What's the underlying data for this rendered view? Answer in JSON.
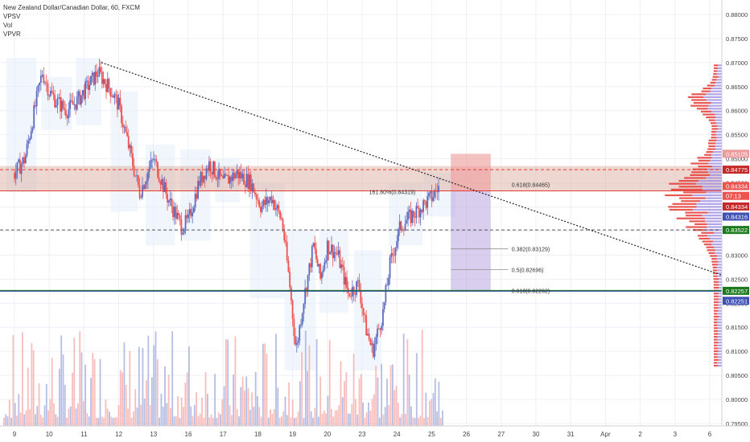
{
  "header": {
    "title": "New Zealand Dollar/Canadian Dollar, 60, FXCM",
    "indicators": [
      "VPSV",
      "Vol",
      "VPVR"
    ]
  },
  "chart_data": {
    "type": "candlestick",
    "title": "New Zealand Dollar/Canadian Dollar, 60, FXCM",
    "y_range": [
      0.7945,
      0.883
    ],
    "y_ticks": [
      "0.88000",
      "0.87500",
      "0.87000",
      "0.86500",
      "0.86000",
      "0.85500",
      "0.85000",
      "0.84500",
      "0.84000",
      "0.83500",
      "0.83000",
      "0.82500",
      "0.82000",
      "0.81500",
      "0.81000",
      "0.80500",
      "0.80000",
      "0.79500"
    ],
    "x_ticks": [
      {
        "label": "9",
        "day": 0
      },
      {
        "label": "10",
        "day": 1
      },
      {
        "label": "11",
        "day": 2
      },
      {
        "label": "12",
        "day": 3
      },
      {
        "label": "13",
        "day": 4
      },
      {
        "label": "16",
        "day": 5
      },
      {
        "label": "17",
        "day": 6
      },
      {
        "label": "18",
        "day": 7
      },
      {
        "label": "19",
        "day": 8
      },
      {
        "label": "20",
        "day": 9
      },
      {
        "label": "23",
        "day": 10
      },
      {
        "label": "24",
        "day": 11
      },
      {
        "label": "25",
        "day": 12
      },
      {
        "label": "26",
        "day": 13
      },
      {
        "label": "27",
        "day": 14
      },
      {
        "label": "30",
        "day": 15
      },
      {
        "label": "31",
        "day": 16
      },
      {
        "label": "Apr",
        "day": 17
      },
      {
        "label": "2",
        "day": 18
      },
      {
        "label": "3",
        "day": 19
      },
      {
        "label": "6",
        "day": 20
      }
    ],
    "price_path": [
      [
        0.0,
        0.847
      ],
      [
        0.3,
        0.85
      ],
      [
        0.6,
        0.861
      ],
      [
        0.8,
        0.868
      ],
      [
        1.0,
        0.864
      ],
      [
        1.2,
        0.862
      ],
      [
        1.5,
        0.86
      ],
      [
        1.8,
        0.862
      ],
      [
        2.1,
        0.865
      ],
      [
        2.4,
        0.868
      ],
      [
        2.6,
        0.866
      ],
      [
        2.8,
        0.864
      ],
      [
        3.0,
        0.861
      ],
      [
        3.3,
        0.852
      ],
      [
        3.6,
        0.843
      ],
      [
        4.0,
        0.85
      ],
      [
        4.4,
        0.842
      ],
      [
        4.8,
        0.836
      ],
      [
        5.0,
        0.837
      ],
      [
        5.3,
        0.845
      ],
      [
        5.6,
        0.849
      ],
      [
        6.0,
        0.845
      ],
      [
        6.4,
        0.847
      ],
      [
        6.8,
        0.845
      ],
      [
        7.1,
        0.84
      ],
      [
        7.4,
        0.842
      ],
      [
        7.7,
        0.837
      ],
      [
        7.9,
        0.825
      ],
      [
        8.1,
        0.81
      ],
      [
        8.3,
        0.82
      ],
      [
        8.6,
        0.832
      ],
      [
        8.8,
        0.825
      ],
      [
        9.0,
        0.832
      ],
      [
        9.3,
        0.83
      ],
      [
        9.6,
        0.822
      ],
      [
        9.9,
        0.824
      ],
      [
        10.1,
        0.815
      ],
      [
        10.3,
        0.81
      ],
      [
        10.6,
        0.818
      ],
      [
        10.8,
        0.828
      ],
      [
        11.1,
        0.836
      ],
      [
        11.4,
        0.838
      ],
      [
        11.7,
        0.84
      ],
      [
        12.0,
        0.842
      ],
      [
        12.2,
        0.844
      ]
    ],
    "trendline": {
      "from": {
        "day": 2.5,
        "price": 0.87
      },
      "to": {
        "day": 20.6,
        "price": 0.8252
      },
      "style": "dotted"
    },
    "resistance_zone": {
      "high": 0.8485,
      "low": 0.8433
    },
    "horizontal_lines": [
      {
        "price": 0.84775,
        "style": "dashed",
        "color": "#e53935"
      },
      {
        "price": 0.84334,
        "style": "solid",
        "color": "#e53935"
      },
      {
        "price": 0.83522,
        "style": "dashed",
        "color": "#555555"
      },
      {
        "price": 0.82257,
        "style": "solid",
        "color": "#1b7a1b"
      },
      {
        "price": 0.82251,
        "style": "solid",
        "color": "#3f51b5"
      }
    ],
    "trade_box": {
      "day_start": 12.55,
      "day_end": 13.7,
      "entry": 0.84334,
      "stop": 0.85105,
      "target": 0.82257
    },
    "annotations": [
      {
        "text": "161.80%(0.84319)",
        "day": 10.2,
        "price": 0.84319
      },
      {
        "text": "0.618(0.84465)",
        "day": 14.3,
        "price": 0.84465
      },
      {
        "text": "0.382(0.83129)",
        "day": 14.3,
        "price": 0.83129
      },
      {
        "text": "0.5(0.82696)",
        "day": 14.3,
        "price": 0.82696
      },
      {
        "text": "0.618(0.82262)",
        "day": 14.3,
        "price": 0.82262
      }
    ],
    "price_labels": [
      {
        "text": "0.85105",
        "price": 0.85105,
        "color": "#ef9a9a"
      },
      {
        "text": "0.84775",
        "price": 0.84775,
        "color": "#c62828"
      },
      {
        "text": "0.84334",
        "price": 0.84434,
        "color": "#ef5350"
      },
      {
        "text": "07:13",
        "price": 0.8423,
        "color": "#ef5350"
      },
      {
        "text": "0.84334",
        "price": 0.8401,
        "color": "#c62828"
      },
      {
        "text": "0.84316",
        "price": 0.838,
        "color": "#3f51b5"
      },
      {
        "text": "0.83522",
        "price": 0.83522,
        "color": "#1b7a1b"
      },
      {
        "text": "0.82257",
        "price": 0.82257,
        "color": "#1b7a1b"
      },
      {
        "text": "0.82251",
        "price": 0.8205,
        "color": "#3f51b5"
      }
    ],
    "volume_profile_center": 0.842,
    "colors": {
      "up": "#5c6bc0",
      "down": "#ef5350",
      "grid": "#eef0f5",
      "zone": "#d9a79a"
    }
  }
}
